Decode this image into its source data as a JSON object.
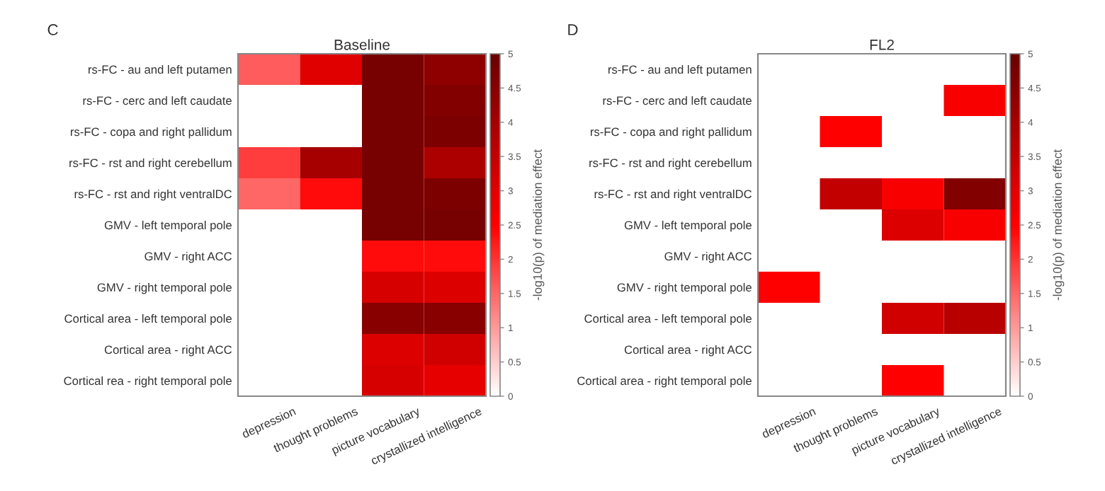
{
  "chart_data": [
    {
      "type": "heatmap",
      "title": "Baseline",
      "annotations": [
        "C"
      ],
      "categories": [
        "depression",
        "thought problems",
        "picture vocabulary",
        "crystallized intelligence"
      ],
      "y_categories": [
        "rs-FC - au and left putamen",
        "rs-FC - cerc and left caudate",
        "rs-FC - copa and right pallidum",
        "rs-FC - rst and right cerebellum",
        "rs-FC - rst and right ventralDC",
        "GMV - left temporal pole",
        "GMV - right ACC",
        "GMV - right temporal pole",
        "Cortical area - left temporal pole",
        "Cortical area - right ACC",
        "Cortical rea - right temporal pole"
      ],
      "cells": [
        [
          1.6,
          3.0,
          4.8,
          4.4
        ],
        [
          null,
          null,
          4.8,
          4.6
        ],
        [
          null,
          null,
          4.8,
          4.7
        ],
        [
          1.9,
          4.0,
          4.8,
          3.9
        ],
        [
          1.5,
          2.4,
          4.8,
          4.7
        ],
        [
          null,
          null,
          4.8,
          4.8
        ],
        [
          null,
          null,
          2.4,
          2.4
        ],
        [
          null,
          null,
          3.2,
          3.1
        ],
        [
          null,
          null,
          4.5,
          4.5
        ],
        [
          null,
          null,
          3.1,
          3.3
        ],
        [
          null,
          null,
          3.2,
          2.9
        ]
      ],
      "clim": [
        0,
        5
      ],
      "cticks": [
        0,
        0.5,
        1,
        1.5,
        2,
        2.5,
        3,
        3.5,
        4,
        4.5,
        5
      ],
      "clabel": "-log10(p) of mediation effect"
    },
    {
      "type": "heatmap",
      "title": "FL2",
      "annotations": [
        "D"
      ],
      "categories": [
        "depression",
        "thought problems",
        "picture vocabulary",
        "crystallized intelligence"
      ],
      "y_categories": [
        "rs-FC - au and left putamen",
        "rs-FC - cerc and left caudate",
        "rs-FC - copa and right pallidum",
        "rs-FC - rst and right cerebellum",
        "rs-FC - rst and right ventralDC",
        "GMV - left temporal pole",
        "GMV - right ACC",
        "GMV - right temporal pole",
        "Cortical area - left temporal pole",
        "Cortical area - right ACC",
        "Cortical area - right temporal pole"
      ],
      "cells": [
        [
          null,
          null,
          null,
          null
        ],
        [
          null,
          null,
          null,
          2.6
        ],
        [
          null,
          2.5,
          null,
          null
        ],
        [
          null,
          null,
          null,
          null
        ],
        [
          null,
          3.5,
          2.6,
          4.6
        ],
        [
          null,
          null,
          3.1,
          2.6
        ],
        [
          null,
          null,
          null,
          null
        ],
        [
          2.5,
          null,
          null,
          null
        ],
        [
          null,
          null,
          3.3,
          3.7
        ],
        [
          null,
          null,
          null,
          null
        ],
        [
          null,
          null,
          2.5,
          null
        ]
      ],
      "clim": [
        0,
        5
      ],
      "cticks": [
        0,
        0.5,
        1,
        1.5,
        2,
        2.5,
        3,
        3.5,
        4,
        4.5,
        5
      ],
      "clabel": "-log10(p) of mediation effect"
    }
  ]
}
